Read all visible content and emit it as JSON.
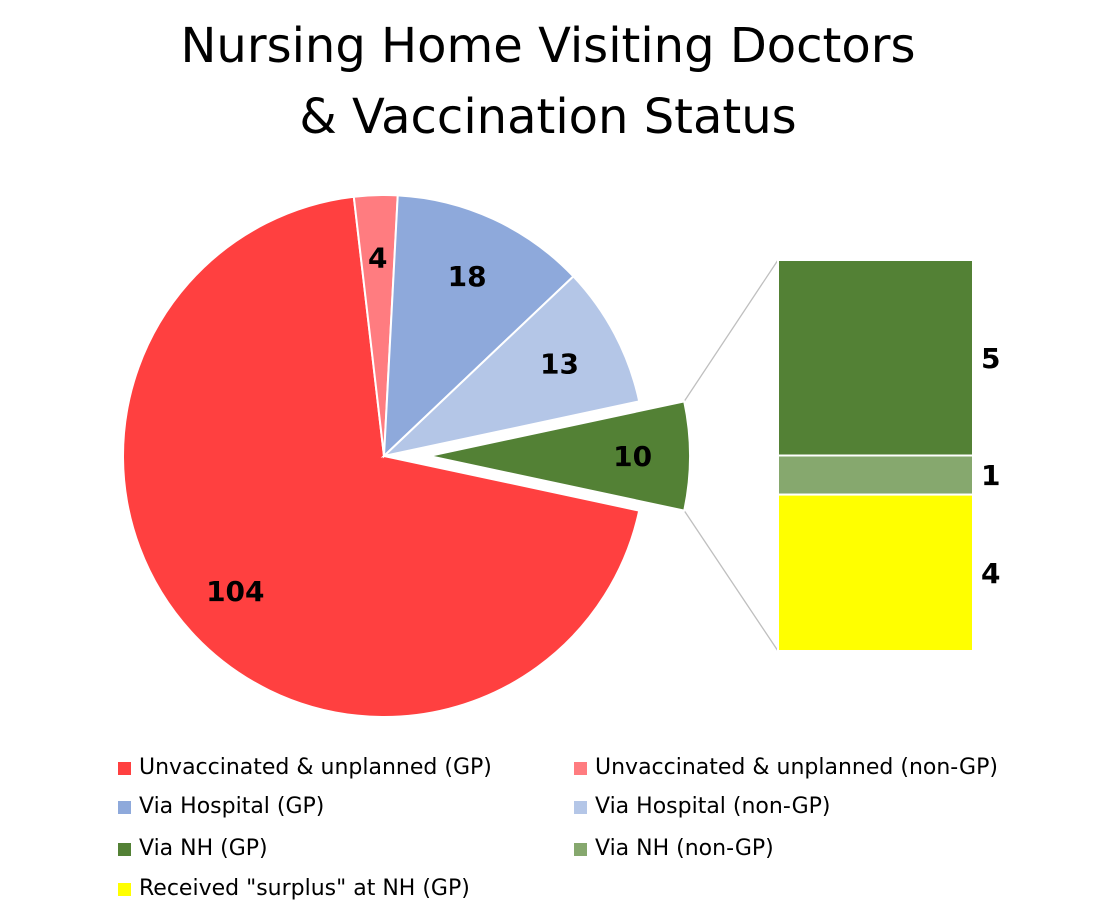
{
  "chart_data": {
    "type": "pie",
    "subtype": "bar-of-pie",
    "title": [
      "Nursing Home Visiting Doctors",
      "& Vaccination Status"
    ],
    "pie_slices": [
      {
        "label": "Unvaccinated & unplanned (GP)",
        "value": 104,
        "color": "#FF4040"
      },
      {
        "label": "Unvaccinated & unplanned (non-GP)",
        "value": 4,
        "color": "#FF7C80"
      },
      {
        "label": "Via Hospital (GP)",
        "value": 18,
        "color": "#8EA9DB"
      },
      {
        "label": "Via Hospital (non-GP)",
        "value": 13,
        "color": "#B4C6E7"
      },
      {
        "label": "",
        "value": 10,
        "color": "#538135",
        "exploded": true
      }
    ],
    "bar_segments": [
      {
        "label": "Via NH (GP)",
        "value": 5,
        "color": "#538135"
      },
      {
        "label": "Via NH (non-GP)",
        "value": 1,
        "color": "#86A86E"
      },
      {
        "label": "Received \"surplus\" at NH (GP)",
        "value": 4,
        "color": "#FFFF00"
      }
    ],
    "legend": [
      {
        "label": "Unvaccinated & unplanned (GP)",
        "color": "#FF4040"
      },
      {
        "label": "Unvaccinated & unplanned (non-GP)",
        "color": "#FF7C80"
      },
      {
        "label": "Via Hospital (GP)",
        "color": "#8EA9DB"
      },
      {
        "label": "Via Hospital (non-GP)",
        "color": "#B4C6E7"
      },
      {
        "label": "Via NH (GP)",
        "color": "#538135"
      },
      {
        "label": "Via NH (non-GP)",
        "color": "#86A86E"
      },
      {
        "label": "Received \"surplus\" at NH (GP)",
        "color": "#FFFF00"
      }
    ],
    "legend_position": "bottom"
  }
}
